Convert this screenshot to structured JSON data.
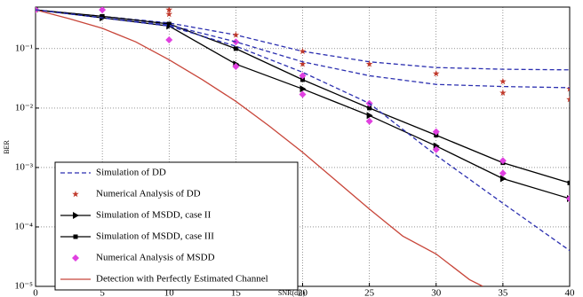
{
  "chart_data": {
    "type": "line",
    "x_label": "SNR(dB)",
    "y_label": "BER",
    "yscale": "log",
    "grid": true,
    "legend": "lower left",
    "xlim": [
      0,
      40
    ],
    "xticks": [
      0,
      5,
      10,
      15,
      20,
      25,
      30,
      35,
      40
    ],
    "ylim": [
      1e-05,
      0.5
    ],
    "yticks": [
      {
        "value": 1e-05,
        "label": "10⁻⁵"
      },
      {
        "value": 0.0001,
        "label": "10⁻⁴"
      },
      {
        "value": 0.001,
        "label": "10⁻³"
      },
      {
        "value": 0.01,
        "label": "10⁻²"
      },
      {
        "value": 0.1,
        "label": "10⁻¹"
      }
    ],
    "series": [
      {
        "name": "Simulation of DD",
        "color": "#2b2fb0",
        "line": "dashed",
        "marker": "none",
        "x": [
          0,
          5,
          10,
          15,
          20,
          25,
          30,
          35,
          40
        ],
        "values": [
          0.45,
          0.35,
          0.27,
          0.17,
          0.09,
          0.06,
          0.048,
          0.045,
          0.044
        ]
      },
      {
        "name": "Numerical Analysis of DD",
        "color": "#c0392b",
        "line": "none",
        "marker": "star",
        "x": [
          0,
          10,
          10,
          15,
          20,
          20,
          25,
          30,
          35,
          35,
          40,
          40
        ],
        "values": [
          0.45,
          0.45,
          0.38,
          0.17,
          0.09,
          0.055,
          0.055,
          0.038,
          0.028,
          0.018,
          0.021,
          0.014
        ]
      },
      {
        "name": "Simulation of MSDD, case II",
        "color": "#000000",
        "line": "solid",
        "marker": "triangle",
        "x": [
          0,
          5,
          10,
          15,
          20,
          25,
          30,
          35,
          40
        ],
        "values": [
          0.45,
          0.33,
          0.24,
          0.055,
          0.021,
          0.0075,
          0.0023,
          0.00065,
          0.0003
        ]
      },
      {
        "name": "Simulation of MSDD, case III",
        "color": "#000000",
        "line": "solid",
        "marker": "square",
        "x": [
          0,
          5,
          10,
          15,
          20,
          25,
          30,
          35,
          40
        ],
        "values": [
          0.45,
          0.35,
          0.26,
          0.1,
          0.03,
          0.01,
          0.0035,
          0.0012,
          0.00055
        ]
      },
      {
        "name": "Numerical Analysis of MSDD",
        "color": "#e040e0",
        "line": "none",
        "marker": "diamond",
        "x": [
          0,
          5,
          10,
          15,
          15,
          20,
          20,
          25,
          25,
          30,
          30,
          35,
          35,
          40
        ],
        "values": [
          0.45,
          0.45,
          0.14,
          0.13,
          0.05,
          0.035,
          0.017,
          0.012,
          0.006,
          0.004,
          0.002,
          0.0013,
          0.0008,
          0.0003
        ]
      },
      {
        "name": "Detection with Perfectly Estimated Channel",
        "color": "#c8463a",
        "line": "solid",
        "marker": "none",
        "x": [
          0,
          2.5,
          5,
          7.5,
          10,
          12.5,
          15,
          17.5,
          20,
          22.5,
          25,
          27.5,
          30,
          32.5,
          33.5
        ],
        "values": [
          0.45,
          0.32,
          0.22,
          0.13,
          0.065,
          0.03,
          0.013,
          0.005,
          0.0018,
          0.0006,
          0.0002,
          7e-05,
          3.5e-05,
          1.3e-05,
          1e-05
        ]
      },
      {
        "name": "Simulation of DD",
        "color": "#2b2fb0",
        "line": "dashed",
        "marker": "none",
        "x": [
          0,
          5,
          10,
          15,
          20,
          25,
          30,
          35,
          40
        ],
        "values": [
          0.45,
          0.33,
          0.25,
          0.13,
          0.06,
          0.035,
          0.025,
          0.023,
          0.022
        ]
      },
      {
        "name": "Simulation of DD",
        "color": "#2b2fb0",
        "line": "dashed",
        "marker": "none",
        "x": [
          0,
          5,
          10,
          15,
          20,
          25,
          30,
          35,
          40
        ],
        "values": [
          0.45,
          0.33,
          0.24,
          0.11,
          0.04,
          0.012,
          0.0016,
          0.00025,
          4e-05
        ]
      }
    ]
  }
}
